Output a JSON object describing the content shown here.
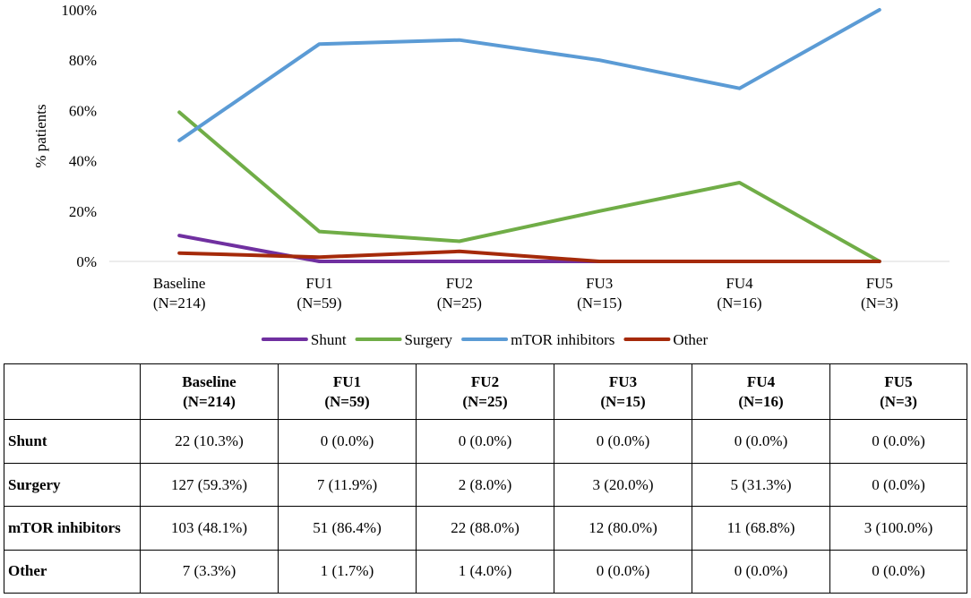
{
  "chart_data": {
    "type": "line",
    "title": "",
    "xlabel": "",
    "ylabel": "% patients",
    "ylim": [
      0,
      100
    ],
    "yticks": [
      "0%",
      "20%",
      "40%",
      "60%",
      "80%",
      "100%"
    ],
    "grid": false,
    "legend_position": "bottom",
    "categories": [
      {
        "name": "Baseline",
        "n": "(N=214)"
      },
      {
        "name": "FU1",
        "n": "(N=59)"
      },
      {
        "name": "FU2",
        "n": "(N=25)"
      },
      {
        "name": "FU3",
        "n": "(N=15)"
      },
      {
        "name": "FU4",
        "n": "(N=16)"
      },
      {
        "name": "FU5",
        "n": "(N=3)"
      }
    ],
    "series": [
      {
        "name": "Shunt",
        "color": "#7030A0",
        "values": [
          10.3,
          0.0,
          0.0,
          0.0,
          0.0,
          0.0
        ]
      },
      {
        "name": "Surgery",
        "color": "#70AD47",
        "values": [
          59.3,
          11.9,
          8.0,
          20.0,
          31.3,
          0.0
        ]
      },
      {
        "name": "mTOR inhibitors",
        "color": "#5B9BD5",
        "values": [
          48.1,
          86.4,
          88.0,
          80.0,
          68.8,
          100.0
        ]
      },
      {
        "name": "Other",
        "color": "#A52A0A",
        "values": [
          3.3,
          1.7,
          4.0,
          0.0,
          0.0,
          0.0
        ]
      }
    ]
  },
  "table": {
    "headers": [
      {
        "line1": "Baseline",
        "line2": "(N=214)"
      },
      {
        "line1": "FU1",
        "line2": "(N=59)"
      },
      {
        "line1": "FU2",
        "line2": "(N=25)"
      },
      {
        "line1": "FU3",
        "line2": "(N=15)"
      },
      {
        "line1": "FU4",
        "line2": "(N=16)"
      },
      {
        "line1": "FU5",
        "line2": "(N=3)"
      }
    ],
    "rows": [
      {
        "label": "Shunt",
        "cells": [
          "22 (10.3%)",
          "0 (0.0%)",
          "0 (0.0%)",
          "0 (0.0%)",
          "0 (0.0%)",
          "0 (0.0%)"
        ]
      },
      {
        "label": "Surgery",
        "cells": [
          "127 (59.3%)",
          "7 (11.9%)",
          "2 (8.0%)",
          "3 (20.0%)",
          "5 (31.3%)",
          "0 (0.0%)"
        ]
      },
      {
        "label": "mTOR inhibitors",
        "cells": [
          "103 (48.1%)",
          "51 (86.4%)",
          "22 (88.0%)",
          "12 (80.0%)",
          "11 (68.8%)",
          "3 (100.0%)"
        ]
      },
      {
        "label": "Other",
        "cells": [
          "7 (3.3%)",
          "1 (1.7%)",
          "1 (4.0%)",
          "0 (0.0%)",
          "0 (0.0%)",
          "0 (0.0%)"
        ]
      }
    ]
  }
}
